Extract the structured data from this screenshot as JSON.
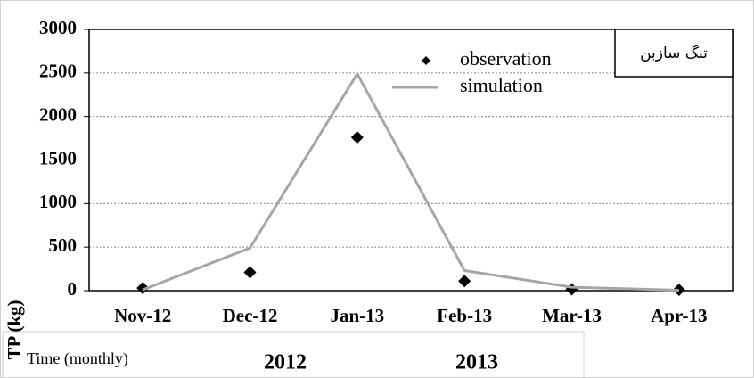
{
  "chart_data": {
    "type": "line",
    "categories": [
      "Nov-12",
      "Dec-12",
      "Jan-13",
      "Feb-13",
      "Mar-13",
      "Apr-13"
    ],
    "series": [
      {
        "name": "observation",
        "color": "#000000",
        "style": "markers",
        "values": [
          30,
          210,
          1760,
          110,
          15,
          10
        ]
      },
      {
        "name": "simulation",
        "color": "#a6a6a6",
        "style": "line",
        "values": [
          10,
          490,
          2490,
          230,
          40,
          5
        ]
      }
    ],
    "ylim": [
      0,
      3000
    ],
    "yticks": [
      0,
      500,
      1000,
      1500,
      2000,
      2500,
      3000
    ],
    "grid": true,
    "y_label": "TP (kg)",
    "x_label": "Time (monthly)",
    "annotation": "تنگ سازبن",
    "year_labels": [
      "2012",
      "2013"
    ]
  }
}
